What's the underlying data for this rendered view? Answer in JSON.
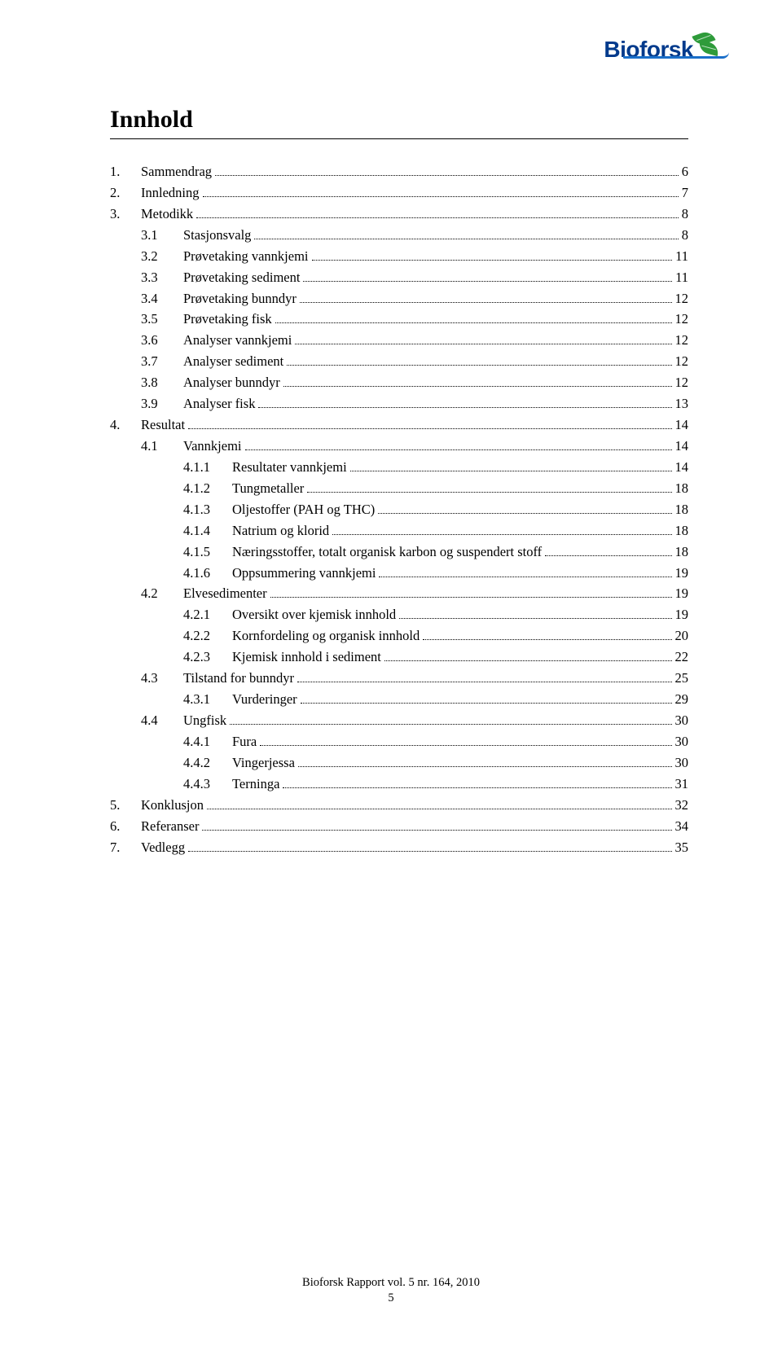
{
  "logo": {
    "bio": "Bio",
    "f": "f",
    "orsk": "orsk"
  },
  "title": "Innhold",
  "toc": [
    {
      "level": 1,
      "num": "1.",
      "label": "Sammendrag",
      "page": "6"
    },
    {
      "level": 1,
      "num": "2.",
      "label": "Innledning",
      "page": "7"
    },
    {
      "level": 1,
      "num": "3.",
      "label": "Metodikk",
      "page": "8"
    },
    {
      "level": 2,
      "num": "3.1",
      "label": "Stasjonsvalg",
      "page": "8"
    },
    {
      "level": 2,
      "num": "3.2",
      "label": "Prøvetaking vannkjemi",
      "page": "11"
    },
    {
      "level": 2,
      "num": "3.3",
      "label": "Prøvetaking sediment",
      "page": "11"
    },
    {
      "level": 2,
      "num": "3.4",
      "label": "Prøvetaking bunndyr",
      "page": "12"
    },
    {
      "level": 2,
      "num": "3.5",
      "label": "Prøvetaking fisk",
      "page": "12"
    },
    {
      "level": 2,
      "num": "3.6",
      "label": "Analyser vannkjemi",
      "page": "12"
    },
    {
      "level": 2,
      "num": "3.7",
      "label": "Analyser sediment",
      "page": "12"
    },
    {
      "level": 2,
      "num": "3.8",
      "label": "Analyser bunndyr",
      "page": "12"
    },
    {
      "level": 2,
      "num": "3.9",
      "label": "Analyser fisk",
      "page": "13"
    },
    {
      "level": 1,
      "num": "4.",
      "label": "Resultat",
      "page": "14"
    },
    {
      "level": 2,
      "num": "4.1",
      "label": "Vannkjemi",
      "page": "14"
    },
    {
      "level": 3,
      "num": "4.1.1",
      "label": "Resultater vannkjemi",
      "page": "14"
    },
    {
      "level": 3,
      "num": "4.1.2",
      "label": "Tungmetaller",
      "page": "18"
    },
    {
      "level": 3,
      "num": "4.1.3",
      "label": "Oljestoffer (PAH og THC)",
      "page": "18"
    },
    {
      "level": 3,
      "num": "4.1.4",
      "label": "Natrium og klorid",
      "page": "18"
    },
    {
      "level": 3,
      "num": "4.1.5",
      "label": "Næringsstoffer, totalt organisk karbon og suspendert stoff",
      "page": "18"
    },
    {
      "level": 3,
      "num": "4.1.6",
      "label": "Oppsummering vannkjemi",
      "page": "19"
    },
    {
      "level": 2,
      "num": "4.2",
      "label": "Elvesedimenter",
      "page": "19"
    },
    {
      "level": 3,
      "num": "4.2.1",
      "label": "Oversikt over kjemisk innhold",
      "page": "19"
    },
    {
      "level": 3,
      "num": "4.2.2",
      "label": "Kornfordeling og organisk innhold",
      "page": "20"
    },
    {
      "level": 3,
      "num": "4.2.3",
      "label": "Kjemisk innhold i sediment",
      "page": "22"
    },
    {
      "level": 2,
      "num": "4.3",
      "label": "Tilstand for bunndyr",
      "page": "25"
    },
    {
      "level": 3,
      "num": "4.3.1",
      "label": "Vurderinger",
      "page": "29"
    },
    {
      "level": 2,
      "num": "4.4",
      "label": "Ungfisk",
      "page": "30"
    },
    {
      "level": 3,
      "num": "4.4.1",
      "label": "Fura",
      "page": "30"
    },
    {
      "level": 3,
      "num": "4.4.2",
      "label": "Vingerjessa",
      "page": "30"
    },
    {
      "level": 3,
      "num": "4.4.3",
      "label": "Terninga",
      "page": "31"
    },
    {
      "level": 1,
      "num": "5.",
      "label": "Konklusjon",
      "page": "32"
    },
    {
      "level": 1,
      "num": "6.",
      "label": "Referanser",
      "page": "34"
    },
    {
      "level": 1,
      "num": "7.",
      "label": "Vedlegg",
      "page": "35"
    }
  ],
  "footer": {
    "line1": "Bioforsk Rapport vol. 5 nr. 164, 2010",
    "line2": "5"
  }
}
